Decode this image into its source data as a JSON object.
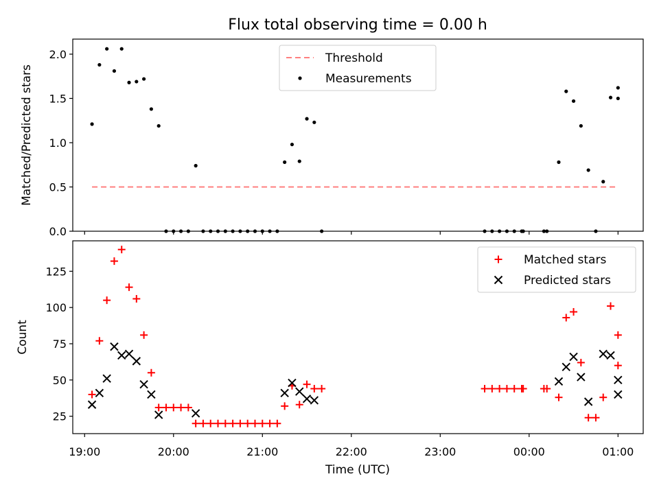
{
  "chart_data": {
    "type": "scatter",
    "title": "Flux total observing time = 0.00 h",
    "xlabel": "Time (UTC)",
    "x_ticks": [
      "19:00",
      "20:00",
      "21:00",
      "22:00",
      "23:00",
      "00:00",
      "01:00"
    ],
    "xlim": [
      "18:52",
      "01:17"
    ],
    "panels": [
      {
        "ylabel": "Matched/Predicted stars",
        "ylim": [
          0,
          2.17
        ],
        "y_ticks": [
          "0.0",
          "0.5",
          "1.0",
          "1.5",
          "2.0"
        ],
        "legend_position": "upper center",
        "series": [
          {
            "name": "Threshold",
            "kind": "line",
            "style": "dashed",
            "color": "#ff7f7f",
            "points": [
              [
                "19:05",
                0.5
              ],
              [
                "01:00",
                0.5
              ]
            ]
          },
          {
            "name": "Measurements",
            "kind": "scatter",
            "marker": "dot",
            "color": "#000000",
            "points": [
              [
                "19:05",
                1.21
              ],
              [
                "19:10",
                1.88
              ],
              [
                "19:15",
                2.06
              ],
              [
                "19:20",
                1.81
              ],
              [
                "19:25",
                2.06
              ],
              [
                "19:30",
                1.68
              ],
              [
                "19:35",
                1.69
              ],
              [
                "19:40",
                1.72
              ],
              [
                "19:45",
                1.38
              ],
              [
                "19:50",
                1.19
              ],
              [
                "19:55",
                0.0
              ],
              [
                "20:00",
                0.0
              ],
              [
                "20:05",
                0.0
              ],
              [
                "20:10",
                0.0
              ],
              [
                "20:15",
                0.74
              ],
              [
                "20:20",
                0.0
              ],
              [
                "20:25",
                0.0
              ],
              [
                "20:30",
                0.0
              ],
              [
                "20:35",
                0.0
              ],
              [
                "20:40",
                0.0
              ],
              [
                "20:45",
                0.0
              ],
              [
                "20:50",
                0.0
              ],
              [
                "20:55",
                0.0
              ],
              [
                "21:00",
                0.0
              ],
              [
                "21:05",
                0.0
              ],
              [
                "21:10",
                0.0
              ],
              [
                "21:15",
                0.78
              ],
              [
                "21:20",
                0.98
              ],
              [
                "21:25",
                0.79
              ],
              [
                "21:30",
                1.27
              ],
              [
                "21:35",
                1.23
              ],
              [
                "21:40",
                0.0
              ],
              [
                "23:30",
                0.0
              ],
              [
                "23:35",
                0.0
              ],
              [
                "23:40",
                0.0
              ],
              [
                "23:45",
                0.0
              ],
              [
                "23:50",
                0.0
              ],
              [
                "23:55",
                0.0
              ],
              [
                "23:56",
                0.0
              ],
              [
                "00:10",
                0.0
              ],
              [
                "00:12",
                0.0
              ],
              [
                "00:20",
                0.78
              ],
              [
                "00:25",
                1.58
              ],
              [
                "00:30",
                1.47
              ],
              [
                "00:35",
                1.19
              ],
              [
                "00:40",
                0.69
              ],
              [
                "00:45",
                0.0
              ],
              [
                "00:50",
                0.56
              ],
              [
                "00:55",
                1.51
              ],
              [
                "00:60",
                1.62
              ],
              [
                "01:00",
                1.5
              ]
            ]
          }
        ]
      },
      {
        "ylabel": "Count",
        "ylim": [
          13,
          146
        ],
        "y_ticks": [
          "25",
          "50",
          "75",
          "100",
          "125"
        ],
        "legend_position": "upper right",
        "series": [
          {
            "name": "Matched stars",
            "kind": "scatter",
            "marker": "plus",
            "color": "#ff0000",
            "points": [
              [
                "19:05",
                40
              ],
              [
                "19:10",
                77
              ],
              [
                "19:15",
                105
              ],
              [
                "19:20",
                132
              ],
              [
                "19:25",
                140
              ],
              [
                "19:30",
                114
              ],
              [
                "19:35",
                106
              ],
              [
                "19:40",
                81
              ],
              [
                "19:45",
                55
              ],
              [
                "19:50",
                31
              ],
              [
                "19:55",
                31
              ],
              [
                "20:00",
                31
              ],
              [
                "20:05",
                31
              ],
              [
                "20:10",
                31
              ],
              [
                "20:15",
                20
              ],
              [
                "20:20",
                20
              ],
              [
                "20:25",
                20
              ],
              [
                "20:30",
                20
              ],
              [
                "20:35",
                20
              ],
              [
                "20:40",
                20
              ],
              [
                "20:45",
                20
              ],
              [
                "20:50",
                20
              ],
              [
                "20:55",
                20
              ],
              [
                "21:00",
                20
              ],
              [
                "21:05",
                20
              ],
              [
                "21:10",
                20
              ],
              [
                "21:15",
                32
              ],
              [
                "21:20",
                46
              ],
              [
                "21:25",
                33
              ],
              [
                "21:30",
                47
              ],
              [
                "21:35",
                44
              ],
              [
                "21:40",
                44
              ],
              [
                "23:30",
                44
              ],
              [
                "23:35",
                44
              ],
              [
                "23:40",
                44
              ],
              [
                "23:45",
                44
              ],
              [
                "23:50",
                44
              ],
              [
                "23:55",
                44
              ],
              [
                "23:56",
                44
              ],
              [
                "00:10",
                44
              ],
              [
                "00:12",
                44
              ],
              [
                "00:20",
                38
              ],
              [
                "00:25",
                93
              ],
              [
                "00:30",
                97
              ],
              [
                "00:35",
                62
              ],
              [
                "00:40",
                24
              ],
              [
                "00:45",
                24
              ],
              [
                "00:50",
                38
              ],
              [
                "00:55",
                101
              ],
              [
                "00:60",
                81
              ],
              [
                "01:00",
                60
              ]
            ]
          },
          {
            "name": "Predicted stars",
            "kind": "scatter",
            "marker": "cross",
            "color": "#000000",
            "points": [
              [
                "19:05",
                33
              ],
              [
                "19:10",
                41
              ],
              [
                "19:15",
                51
              ],
              [
                "19:20",
                73
              ],
              [
                "19:25",
                67
              ],
              [
                "19:30",
                68
              ],
              [
                "19:35",
                63
              ],
              [
                "19:40",
                47
              ],
              [
                "19:45",
                40
              ],
              [
                "19:50",
                26
              ],
              [
                "20:15",
                27
              ],
              [
                "21:15",
                41
              ],
              [
                "21:20",
                48
              ],
              [
                "21:25",
                42
              ],
              [
                "21:30",
                37
              ],
              [
                "21:35",
                36
              ],
              [
                "00:20",
                49
              ],
              [
                "00:25",
                59
              ],
              [
                "00:30",
                66
              ],
              [
                "00:35",
                52
              ],
              [
                "00:40",
                35
              ],
              [
                "00:50",
                68
              ],
              [
                "00:55",
                67
              ],
              [
                "00:60",
                50
              ],
              [
                "01:00",
                40
              ]
            ]
          }
        ]
      }
    ]
  }
}
